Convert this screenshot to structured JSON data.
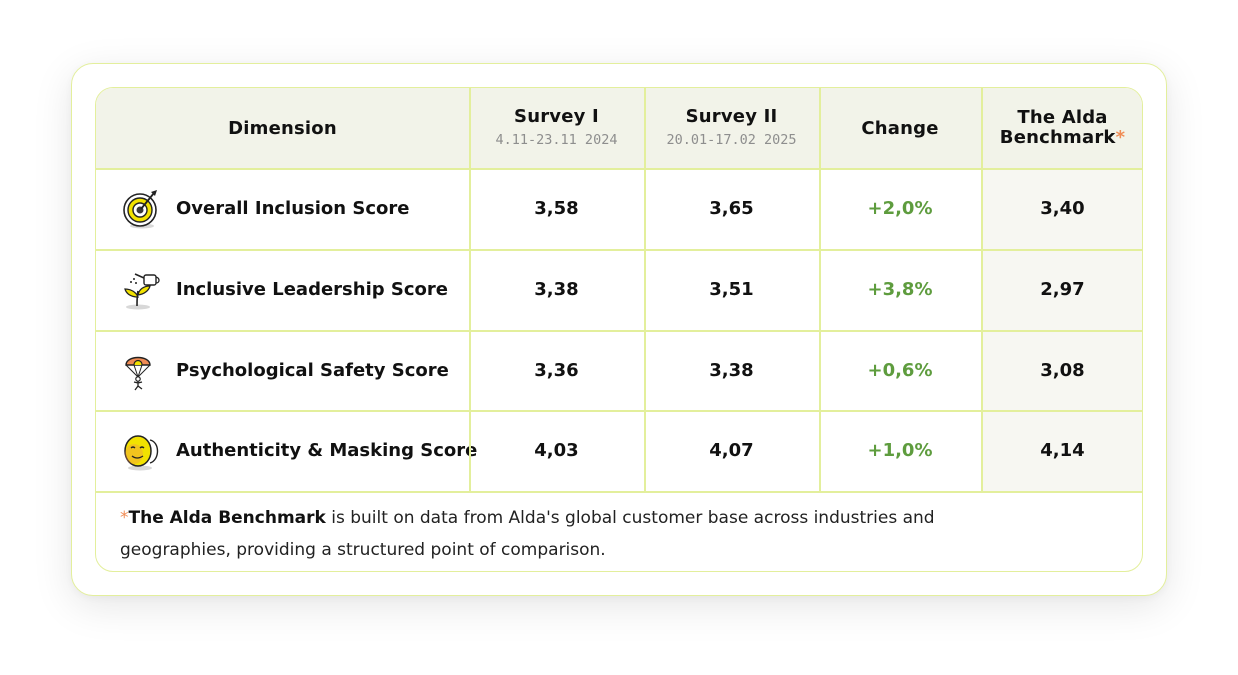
{
  "table": {
    "headers": {
      "dimension": "Dimension",
      "survey1_title": "Survey I",
      "survey1_dates": "4.11-23.11 2024",
      "survey2_title": "Survey II",
      "survey2_dates": "20.01-17.02 2025",
      "change": "Change",
      "benchmark_line1": "The Alda",
      "benchmark_line2": "Benchmark",
      "benchmark_star": "*"
    },
    "rows": [
      {
        "icon": "target-icon",
        "label": "Overall Inclusion Score",
        "survey1": "3,58",
        "survey2": "3,65",
        "change": "+2,0%",
        "benchmark": "3,40"
      },
      {
        "icon": "watering-can-sprout-icon",
        "label": "Inclusive Leadership Score",
        "survey1": "3,38",
        "survey2": "3,51",
        "change": "+3,8%",
        "benchmark": "2,97"
      },
      {
        "icon": "parachute-icon",
        "label": "Psychological Safety Score",
        "survey1": "3,36",
        "survey2": "3,38",
        "change": "+0,6%",
        "benchmark": "3,08"
      },
      {
        "icon": "mask-icon",
        "label": "Authenticity & Masking Score",
        "survey1": "4,03",
        "survey2": "4,07",
        "change": "+1,0%",
        "benchmark": "4,14"
      }
    ]
  },
  "footnote": {
    "star": "*",
    "bold": "The Alda Benchmark",
    "rest": " is built on data from Alda's global customer base across industries and geographies, providing a structured point of comparison."
  },
  "colors": {
    "border": "#e3ef9c",
    "header_bg": "#f2f3e9",
    "change_green": "#5e9c3e",
    "star_orange": "#f08c55"
  }
}
